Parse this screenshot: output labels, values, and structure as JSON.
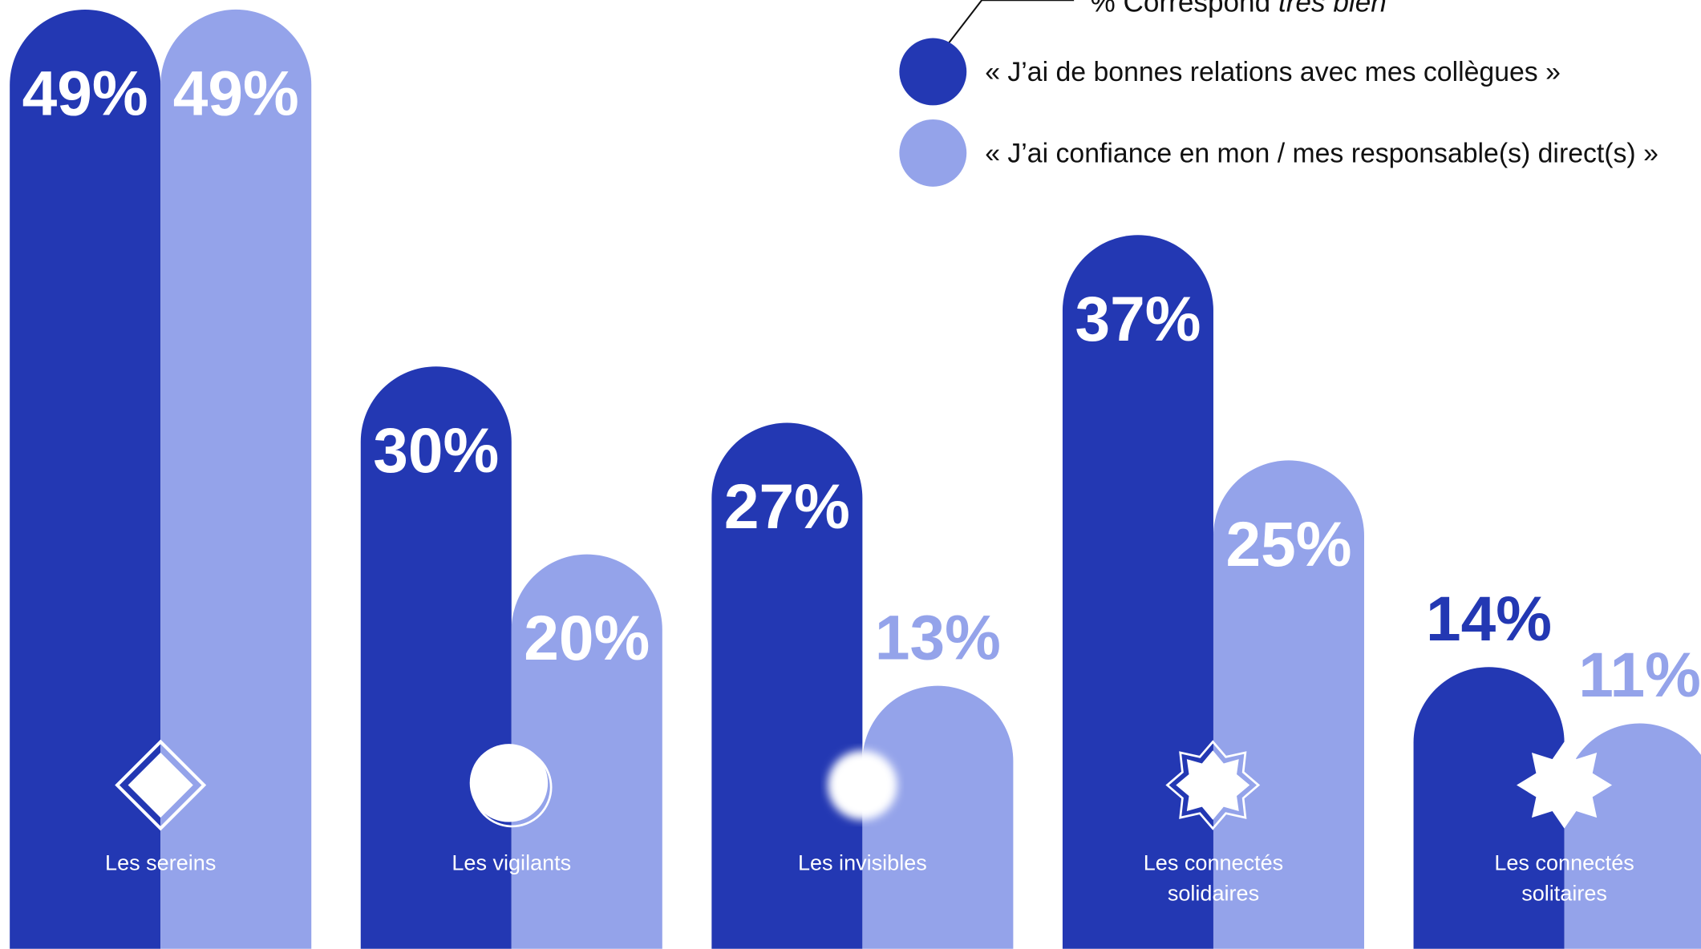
{
  "chart_data": {
    "type": "bar",
    "legend_title": "% Correspond",
    "legend_title_emphasis": "très bien",
    "categories": [
      [
        "Les sereins"
      ],
      [
        "Les vigilants"
      ],
      [
        "Les invisibles"
      ],
      [
        "Les connectés",
        "solidaires"
      ],
      [
        "Les connectés",
        "solitaires"
      ]
    ],
    "series": [
      {
        "name": "« J’ai de bonnes relations avec mes collègues »",
        "color": "#2338b3",
        "values": [
          49,
          30,
          27,
          37,
          14
        ],
        "value_labels": [
          "49%",
          "30%",
          "27%",
          "37%",
          "14%"
        ]
      },
      {
        "name": "« J’ai confiance en mon / mes responsable(s) direct(s) »",
        "color": "#94a3ea",
        "values": [
          49,
          20,
          13,
          25,
          11
        ],
        "value_labels": [
          "49%",
          "20%",
          "13%",
          "25%",
          "11%"
        ]
      }
    ],
    "ylim": [
      -1,
      49.5
    ]
  }
}
